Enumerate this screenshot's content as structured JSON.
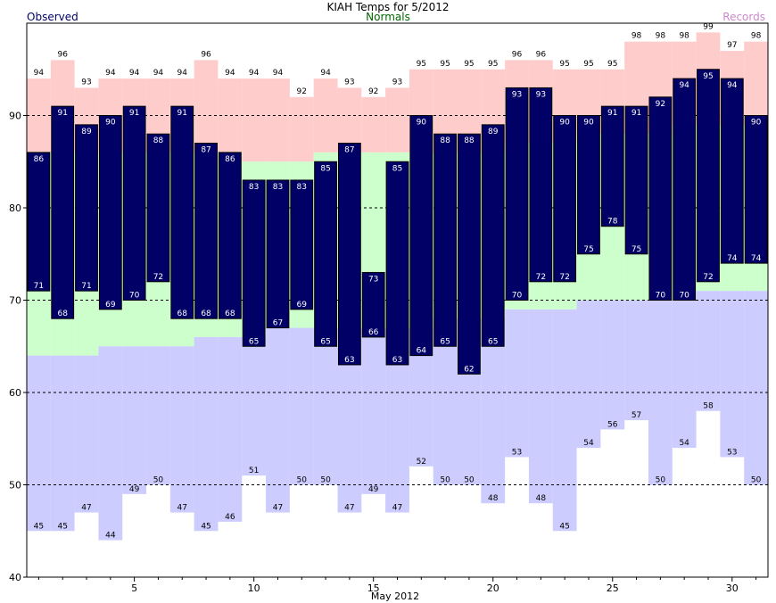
{
  "chart_data": {
    "type": "bar",
    "title": "KIAH Temps for 5/2012",
    "xlabel": "May 2012",
    "legend": {
      "observed": {
        "label": "Observed",
        "color": "#000066"
      },
      "normals": {
        "label": "Normals",
        "color": "#006600"
      },
      "records": {
        "label": "Records",
        "color": "#cc88cc"
      }
    },
    "colors": {
      "observed_bar": "#000066",
      "normal_band": "#ccffcc",
      "record_high_band": "#ffcccc",
      "record_low_band": "#ccccff",
      "grid": "#000000"
    },
    "ylim": [
      40,
      100
    ],
    "xlim": [
      0.5,
      31.5
    ],
    "y_ticks": [
      40,
      50,
      60,
      70,
      80,
      90
    ],
    "x_ticks": [
      5,
      10,
      15,
      20,
      25,
      30
    ],
    "grid_lines": [
      50,
      60,
      70,
      80,
      90
    ],
    "days": [
      1,
      2,
      3,
      4,
      5,
      6,
      7,
      8,
      9,
      10,
      11,
      12,
      13,
      14,
      15,
      16,
      17,
      18,
      19,
      20,
      21,
      22,
      23,
      24,
      25,
      26,
      27,
      28,
      29,
      30,
      31
    ],
    "observed_high": [
      86,
      91,
      89,
      90,
      91,
      88,
      91,
      87,
      86,
      83,
      83,
      83,
      85,
      87,
      73,
      85,
      90,
      88,
      88,
      89,
      93,
      93,
      90,
      90,
      91,
      91,
      92,
      94,
      95,
      94,
      90
    ],
    "observed_low": [
      71,
      68,
      71,
      69,
      70,
      72,
      68,
      68,
      68,
      65,
      67,
      69,
      65,
      63,
      66,
      63,
      64,
      65,
      62,
      65,
      70,
      72,
      72,
      75,
      78,
      75,
      70,
      70,
      72,
      74,
      74
    ],
    "normal_high": [
      86,
      86,
      86,
      86,
      86,
      86,
      86,
      86,
      86,
      85,
      85,
      85,
      86,
      86,
      86,
      86,
      86,
      86,
      86,
      86,
      87,
      87,
      87,
      88,
      88,
      88,
      88,
      89,
      89,
      89,
      89
    ],
    "normal_low": [
      64,
      64,
      64,
      65,
      65,
      65,
      65,
      66,
      66,
      66,
      67,
      67,
      67,
      67,
      67,
      67,
      67,
      68,
      68,
      68,
      69,
      69,
      69,
      70,
      70,
      70,
      70,
      70,
      71,
      71,
      71
    ],
    "record_high": [
      94,
      96,
      93,
      94,
      94,
      94,
      94,
      96,
      94,
      94,
      94,
      92,
      94,
      93,
      92,
      93,
      95,
      95,
      95,
      95,
      96,
      96,
      95,
      95,
      95,
      98,
      98,
      98,
      99,
      97,
      98
    ],
    "record_low": [
      45,
      45,
      47,
      44,
      49,
      50,
      47,
      45,
      46,
      51,
      47,
      50,
      50,
      47,
      49,
      47,
      52,
      50,
      50,
      48,
      53,
      48,
      45,
      54,
      56,
      57,
      50,
      54,
      58,
      53,
      50
    ]
  }
}
